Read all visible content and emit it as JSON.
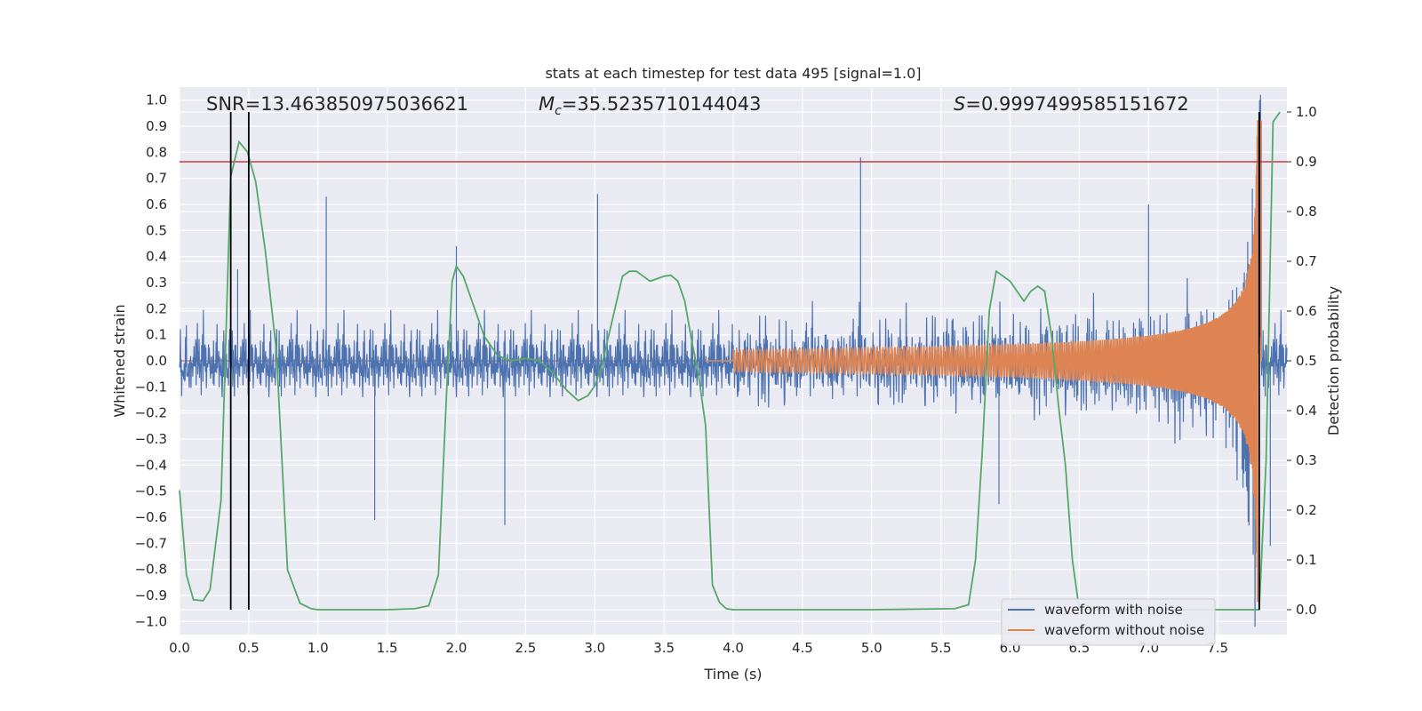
{
  "chart_data": {
    "type": "line",
    "title": "stats at each timestep for test data 495 [signal=1.0]",
    "xlabel": "Time (s)",
    "ylabel_left": "Whitened strain",
    "ylabel_right": "Detection probability",
    "xlim": [
      0.0,
      8.0
    ],
    "ylim_left": [
      -1.05,
      1.05
    ],
    "ylim_right": [
      -0.05,
      1.05
    ],
    "x_ticks": [
      "0.0",
      "0.5",
      "1.0",
      "1.5",
      "2.0",
      "2.5",
      "3.0",
      "3.5",
      "4.0",
      "4.5",
      "5.0",
      "5.5",
      "6.0",
      "6.5",
      "7.0",
      "7.5"
    ],
    "y_ticks_left": [
      "1.0",
      "0.9",
      "0.8",
      "0.7",
      "0.6",
      "0.5",
      "0.4",
      "0.3",
      "0.2",
      "0.1",
      "0.0",
      "−0.1",
      "−0.2",
      "−0.3",
      "−0.4",
      "−0.5",
      "−0.6",
      "−0.7",
      "−0.8",
      "−0.9",
      "−1.0"
    ],
    "y_ticks_right": [
      "1.0",
      "0.9",
      "0.8",
      "0.7",
      "0.6",
      "0.5",
      "0.4",
      "0.3",
      "0.2",
      "0.1",
      "0.0"
    ],
    "grid": true,
    "stats": {
      "snr": "SNR=13.463850975036621",
      "mc_symbol": "M",
      "mc_sub": "c",
      "mc_value": "=35.5235710144043",
      "s_symbol": "S",
      "s_value": "=0.9997499585151672"
    },
    "legend": {
      "placement": "lower-right",
      "entries": [
        {
          "label": "waveform with noise",
          "color": "#4c72b0"
        },
        {
          "label": "waveform without noise",
          "color": "#dd8452"
        }
      ]
    },
    "threshold": {
      "axis": "right",
      "value": 0.9,
      "color": "#c03d3e"
    },
    "vertical_markers": {
      "x": [
        0.37,
        0.5,
        7.8
      ],
      "color": "#000000"
    },
    "series": [
      {
        "name": "waveform with noise",
        "axis": "left",
        "color": "#4c72b0",
        "noise_band": {
          "x_range": [
            0.0,
            8.0
          ],
          "typical_abs": 0.3
        },
        "peaks": [
          {
            "x": 0.42,
            "y": 0.35
          },
          {
            "x": 0.5,
            "y": 0.5
          },
          {
            "x": 1.06,
            "y": 0.63
          },
          {
            "x": 1.41,
            "y": -0.61
          },
          {
            "x": 2.0,
            "y": 0.44
          },
          {
            "x": 2.35,
            "y": -0.63
          },
          {
            "x": 3.02,
            "y": 0.64
          },
          {
            "x": 4.92,
            "y": 0.78
          },
          {
            "x": 5.92,
            "y": -0.55
          },
          {
            "x": 7.0,
            "y": 0.6
          },
          {
            "x": 7.75,
            "y": 0.66
          },
          {
            "x": 7.88,
            "y": -0.71
          }
        ]
      },
      {
        "name": "waveform without noise",
        "axis": "left",
        "color": "#dd8452",
        "chirp": {
          "start": 4.0,
          "merger": 7.8,
          "peak_amp": 0.98
        }
      },
      {
        "name": "detection probability",
        "axis": "right",
        "color": "#55a868",
        "x": [
          0.0,
          0.05,
          0.1,
          0.17,
          0.22,
          0.3,
          0.37,
          0.43,
          0.49,
          0.55,
          0.62,
          0.7,
          0.78,
          0.87,
          0.95,
          1.0,
          1.2,
          1.5,
          1.7,
          1.8,
          1.87,
          1.93,
          1.97,
          2.0,
          2.05,
          2.1,
          2.2,
          2.3,
          2.4,
          2.5,
          2.6,
          2.7,
          2.8,
          2.88,
          2.95,
          3.0,
          3.05,
          3.1,
          3.2,
          3.25,
          3.3,
          3.35,
          3.4,
          3.45,
          3.5,
          3.55,
          3.6,
          3.65,
          3.7,
          3.75,
          3.8,
          3.85,
          3.9,
          3.95,
          4.0,
          5.0,
          5.6,
          5.7,
          5.75,
          5.8,
          5.85,
          5.9,
          6.0,
          6.05,
          6.1,
          6.15,
          6.2,
          6.25,
          6.3,
          6.35,
          6.4,
          6.45,
          6.5,
          7.7,
          7.78,
          7.8,
          7.85,
          7.9,
          7.95
        ],
        "values": [
          0.24,
          0.07,
          0.02,
          0.018,
          0.04,
          0.22,
          0.87,
          0.94,
          0.92,
          0.86,
          0.72,
          0.52,
          0.08,
          0.013,
          0.002,
          0.0,
          0.0,
          0.0,
          0.002,
          0.008,
          0.07,
          0.44,
          0.66,
          0.69,
          0.67,
          0.63,
          0.55,
          0.51,
          0.5,
          0.505,
          0.5,
          0.475,
          0.44,
          0.42,
          0.43,
          0.45,
          0.49,
          0.55,
          0.67,
          0.68,
          0.68,
          0.67,
          0.66,
          0.665,
          0.67,
          0.672,
          0.66,
          0.62,
          0.54,
          0.47,
          0.37,
          0.05,
          0.015,
          0.002,
          0.0,
          0.0,
          0.002,
          0.01,
          0.1,
          0.32,
          0.6,
          0.68,
          0.66,
          0.64,
          0.62,
          0.64,
          0.65,
          0.64,
          0.55,
          0.41,
          0.29,
          0.1,
          0.0,
          0.0,
          0.0,
          0.0,
          0.3,
          0.98,
          1.0
        ]
      }
    ]
  }
}
